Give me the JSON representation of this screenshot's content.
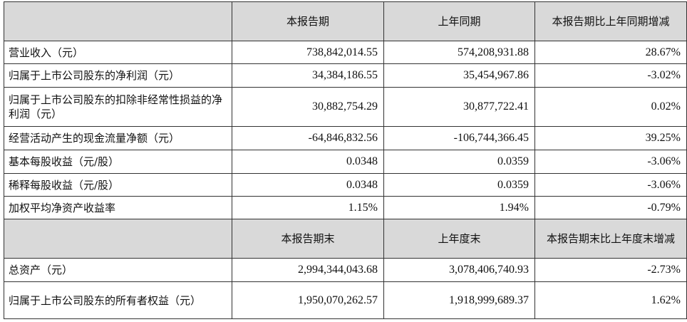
{
  "header1": {
    "col1": "本报告期",
    "col2": "上年同期",
    "col3": "本报告期比上年同期增减"
  },
  "rows1": [
    {
      "label": "营业收入（元）",
      "current": "738,842,014.55",
      "prior": "574,208,931.88",
      "change": "28.67%"
    },
    {
      "label": "归属于上市公司股东的净利润（元）",
      "current": "34,384,186.55",
      "prior": "35,454,967.86",
      "change": "-3.02%"
    },
    {
      "label": "归属于上市公司股东的扣除非经常性损益的净利润（元）",
      "current": "30,882,754.29",
      "prior": "30,877,722.41",
      "change": "0.02%"
    },
    {
      "label": "经营活动产生的现金流量净额（元）",
      "current": "-64,846,832.56",
      "prior": "-106,744,366.45",
      "change": "39.25%"
    },
    {
      "label": "基本每股收益（元/股）",
      "current": "0.0348",
      "prior": "0.0359",
      "change": "-3.06%"
    },
    {
      "label": "稀释每股收益（元/股）",
      "current": "0.0348",
      "prior": "0.0359",
      "change": "-3.06%"
    },
    {
      "label": "加权平均净资产收益率",
      "current": "1.15%",
      "prior": "1.94%",
      "change": "-0.79%"
    }
  ],
  "header2": {
    "col1": "本报告期末",
    "col2": "上年度末",
    "col3": "本报告期末比上年度末增减"
  },
  "rows2": [
    {
      "label": "总资产（元）",
      "current": "2,994,344,043.68",
      "prior": "3,078,406,740.93",
      "change": "-2.73%"
    },
    {
      "label": "归属于上市公司股东的所有者权益（元）",
      "current": "1,950,070,262.57",
      "prior": "1,918,999,689.37",
      "change": "1.62%"
    }
  ]
}
